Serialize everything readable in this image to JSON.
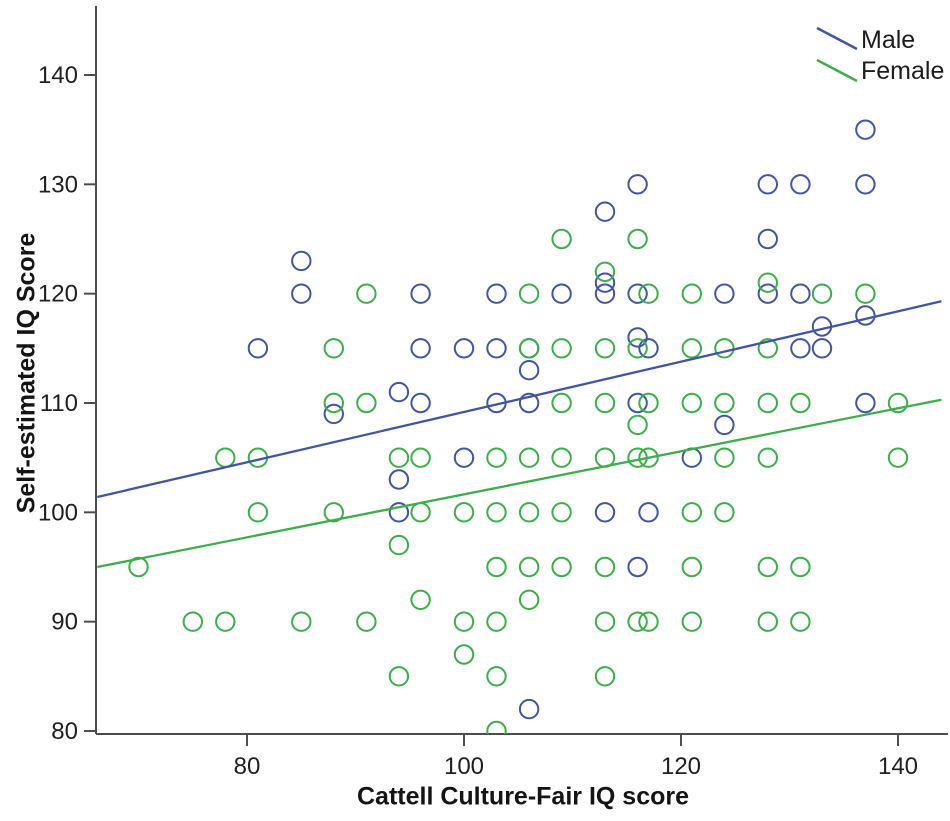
{
  "chart": {
    "x_axis": {
      "label": "Cattell Culture-Fair IQ score",
      "ticks": [
        80,
        100,
        120,
        140
      ]
    },
    "y_axis": {
      "label": "Self-estimated IQ Score",
      "ticks": [
        80,
        90,
        100,
        110,
        120,
        130,
        140
      ]
    },
    "legend": [
      {
        "name": "Male",
        "color": "#4255a4"
      },
      {
        "name": "Female",
        "color": "#3dae49"
      }
    ]
  },
  "chart_data": {
    "type": "scatter",
    "title": "",
    "xlabel": "Cattell Culture-Fair IQ score",
    "ylabel": "Self-estimated IQ Score",
    "xlim": [
      66,
      145
    ],
    "ylim": [
      79.5,
      146
    ],
    "grid": false,
    "legend_position": "top-right",
    "marker": "open-circle",
    "series": [
      {
        "name": "Male",
        "color": "#4255a4",
        "points": [
          [
            137,
            135
          ],
          [
            116,
            130
          ],
          [
            128,
            130
          ],
          [
            131,
            130
          ],
          [
            137,
            130
          ],
          [
            113,
            127.5
          ],
          [
            128,
            125
          ],
          [
            85,
            123
          ],
          [
            113,
            121
          ],
          [
            85,
            120
          ],
          [
            96,
            120
          ],
          [
            103,
            120
          ],
          [
            109,
            120
          ],
          [
            113,
            120
          ],
          [
            116,
            120
          ],
          [
            124,
            120
          ],
          [
            128,
            120
          ],
          [
            131,
            120
          ],
          [
            137,
            118
          ],
          [
            133,
            117
          ],
          [
            116,
            116
          ],
          [
            81,
            115
          ],
          [
            96,
            115
          ],
          [
            100,
            115
          ],
          [
            103,
            115
          ],
          [
            106,
            115
          ],
          [
            117,
            115
          ],
          [
            131,
            115
          ],
          [
            133,
            115
          ],
          [
            106,
            113
          ],
          [
            94,
            111
          ],
          [
            96,
            110
          ],
          [
            103,
            110
          ],
          [
            106,
            110
          ],
          [
            116,
            110
          ],
          [
            137,
            110
          ],
          [
            88,
            109
          ],
          [
            124,
            108
          ],
          [
            100,
            105
          ],
          [
            121,
            105
          ],
          [
            94,
            103
          ],
          [
            94,
            100
          ],
          [
            113,
            100
          ],
          [
            117,
            100
          ],
          [
            116,
            95
          ],
          [
            106,
            82
          ]
        ]
      },
      {
        "name": "Female",
        "color": "#3dae49",
        "points": [
          [
            109,
            125
          ],
          [
            116,
            125
          ],
          [
            113,
            122
          ],
          [
            128,
            121
          ],
          [
            91,
            120
          ],
          [
            106,
            120
          ],
          [
            117,
            120
          ],
          [
            121,
            120
          ],
          [
            133,
            120
          ],
          [
            137,
            120
          ],
          [
            88,
            115
          ],
          [
            106,
            115
          ],
          [
            109,
            115
          ],
          [
            113,
            115
          ],
          [
            116,
            115
          ],
          [
            121,
            115
          ],
          [
            124,
            115
          ],
          [
            128,
            115
          ],
          [
            88,
            110
          ],
          [
            91,
            110
          ],
          [
            109,
            110
          ],
          [
            113,
            110
          ],
          [
            117,
            110
          ],
          [
            121,
            110
          ],
          [
            124,
            110
          ],
          [
            128,
            110
          ],
          [
            131,
            110
          ],
          [
            140,
            110
          ],
          [
            116,
            108
          ],
          [
            78,
            105
          ],
          [
            81,
            105
          ],
          [
            94,
            105
          ],
          [
            96,
            105
          ],
          [
            103,
            105
          ],
          [
            106,
            105
          ],
          [
            109,
            105
          ],
          [
            113,
            105
          ],
          [
            116,
            105
          ],
          [
            117,
            105
          ],
          [
            124,
            105
          ],
          [
            128,
            105
          ],
          [
            140,
            105
          ],
          [
            81,
            100
          ],
          [
            88,
            100
          ],
          [
            96,
            100
          ],
          [
            100,
            100
          ],
          [
            103,
            100
          ],
          [
            106,
            100
          ],
          [
            109,
            100
          ],
          [
            121,
            100
          ],
          [
            124,
            100
          ],
          [
            94,
            97
          ],
          [
            70,
            95
          ],
          [
            103,
            95
          ],
          [
            106,
            95
          ],
          [
            109,
            95
          ],
          [
            113,
            95
          ],
          [
            121,
            95
          ],
          [
            128,
            95
          ],
          [
            131,
            95
          ],
          [
            96,
            92
          ],
          [
            106,
            92
          ],
          [
            75,
            90
          ],
          [
            78,
            90
          ],
          [
            85,
            90
          ],
          [
            91,
            90
          ],
          [
            100,
            90
          ],
          [
            103,
            90
          ],
          [
            113,
            90
          ],
          [
            116,
            90
          ],
          [
            117,
            90
          ],
          [
            121,
            90
          ],
          [
            128,
            90
          ],
          [
            131,
            90
          ],
          [
            100,
            87
          ],
          [
            94,
            85
          ],
          [
            103,
            85
          ],
          [
            113,
            85
          ],
          [
            103,
            80
          ]
        ]
      }
    ],
    "trend_lines": [
      {
        "name": "Male",
        "color": "#4255a4",
        "x1": 66.2,
        "y1": 101.4,
        "x2": 144.0,
        "y2": 119.3
      },
      {
        "name": "Female",
        "color": "#3dae49",
        "x1": 66.2,
        "y1": 95.0,
        "x2": 144.0,
        "y2": 110.3
      }
    ]
  }
}
